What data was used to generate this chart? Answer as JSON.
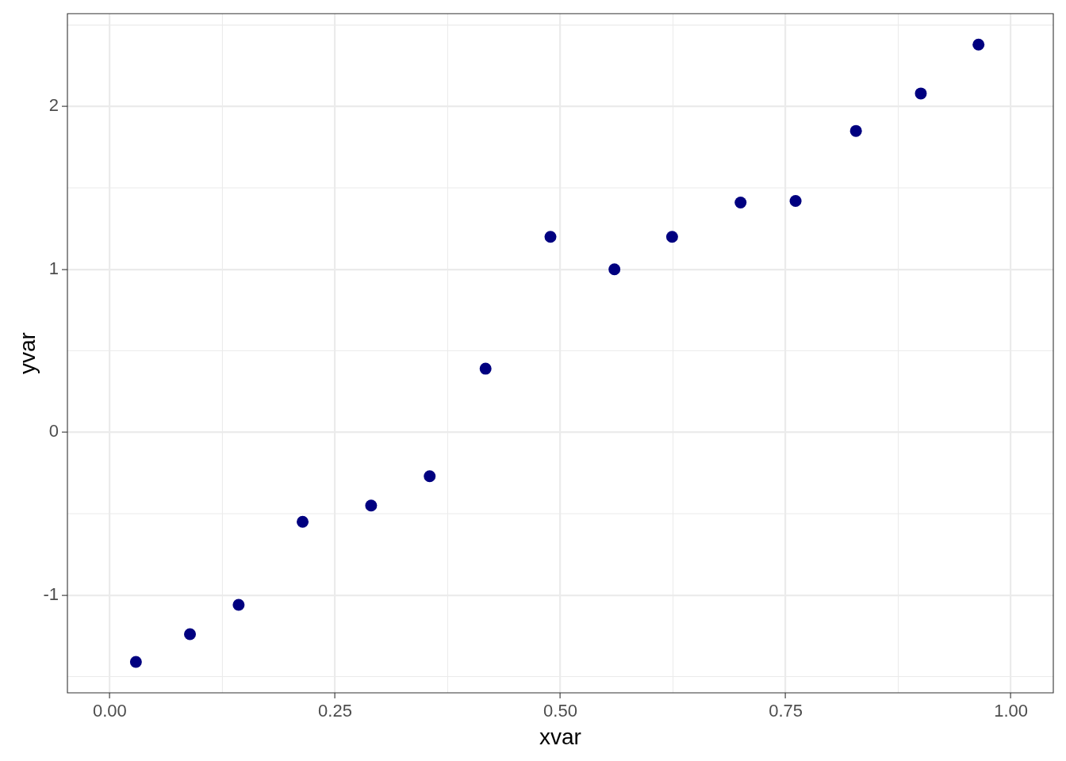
{
  "chart_data": {
    "type": "scatter",
    "xlabel": "xvar",
    "ylabel": "yvar",
    "x": [
      0.029,
      0.089,
      0.143,
      0.214,
      0.29,
      0.355,
      0.417,
      0.489,
      0.56,
      0.624,
      0.7,
      0.761,
      0.828,
      0.9,
      0.964
    ],
    "values": [
      -1.41,
      -1.24,
      -1.06,
      -0.55,
      -0.45,
      -0.27,
      0.39,
      1.2,
      1.0,
      1.2,
      1.41,
      1.42,
      1.85,
      2.08,
      2.38
    ],
    "color": "#000080",
    "marker": "circle",
    "xlim": [
      -0.047,
      1.047
    ],
    "ylim": [
      -1.6,
      2.57
    ],
    "xticks": [
      {
        "value": 0,
        "label": "0.00"
      },
      0.25,
      {
        "value": 0.5,
        "label": "0.50"
      },
      0.75,
      {
        "value": 1,
        "label": "1.00"
      }
    ],
    "yticks": [
      -1,
      0,
      1,
      2
    ],
    "grid": true
  }
}
